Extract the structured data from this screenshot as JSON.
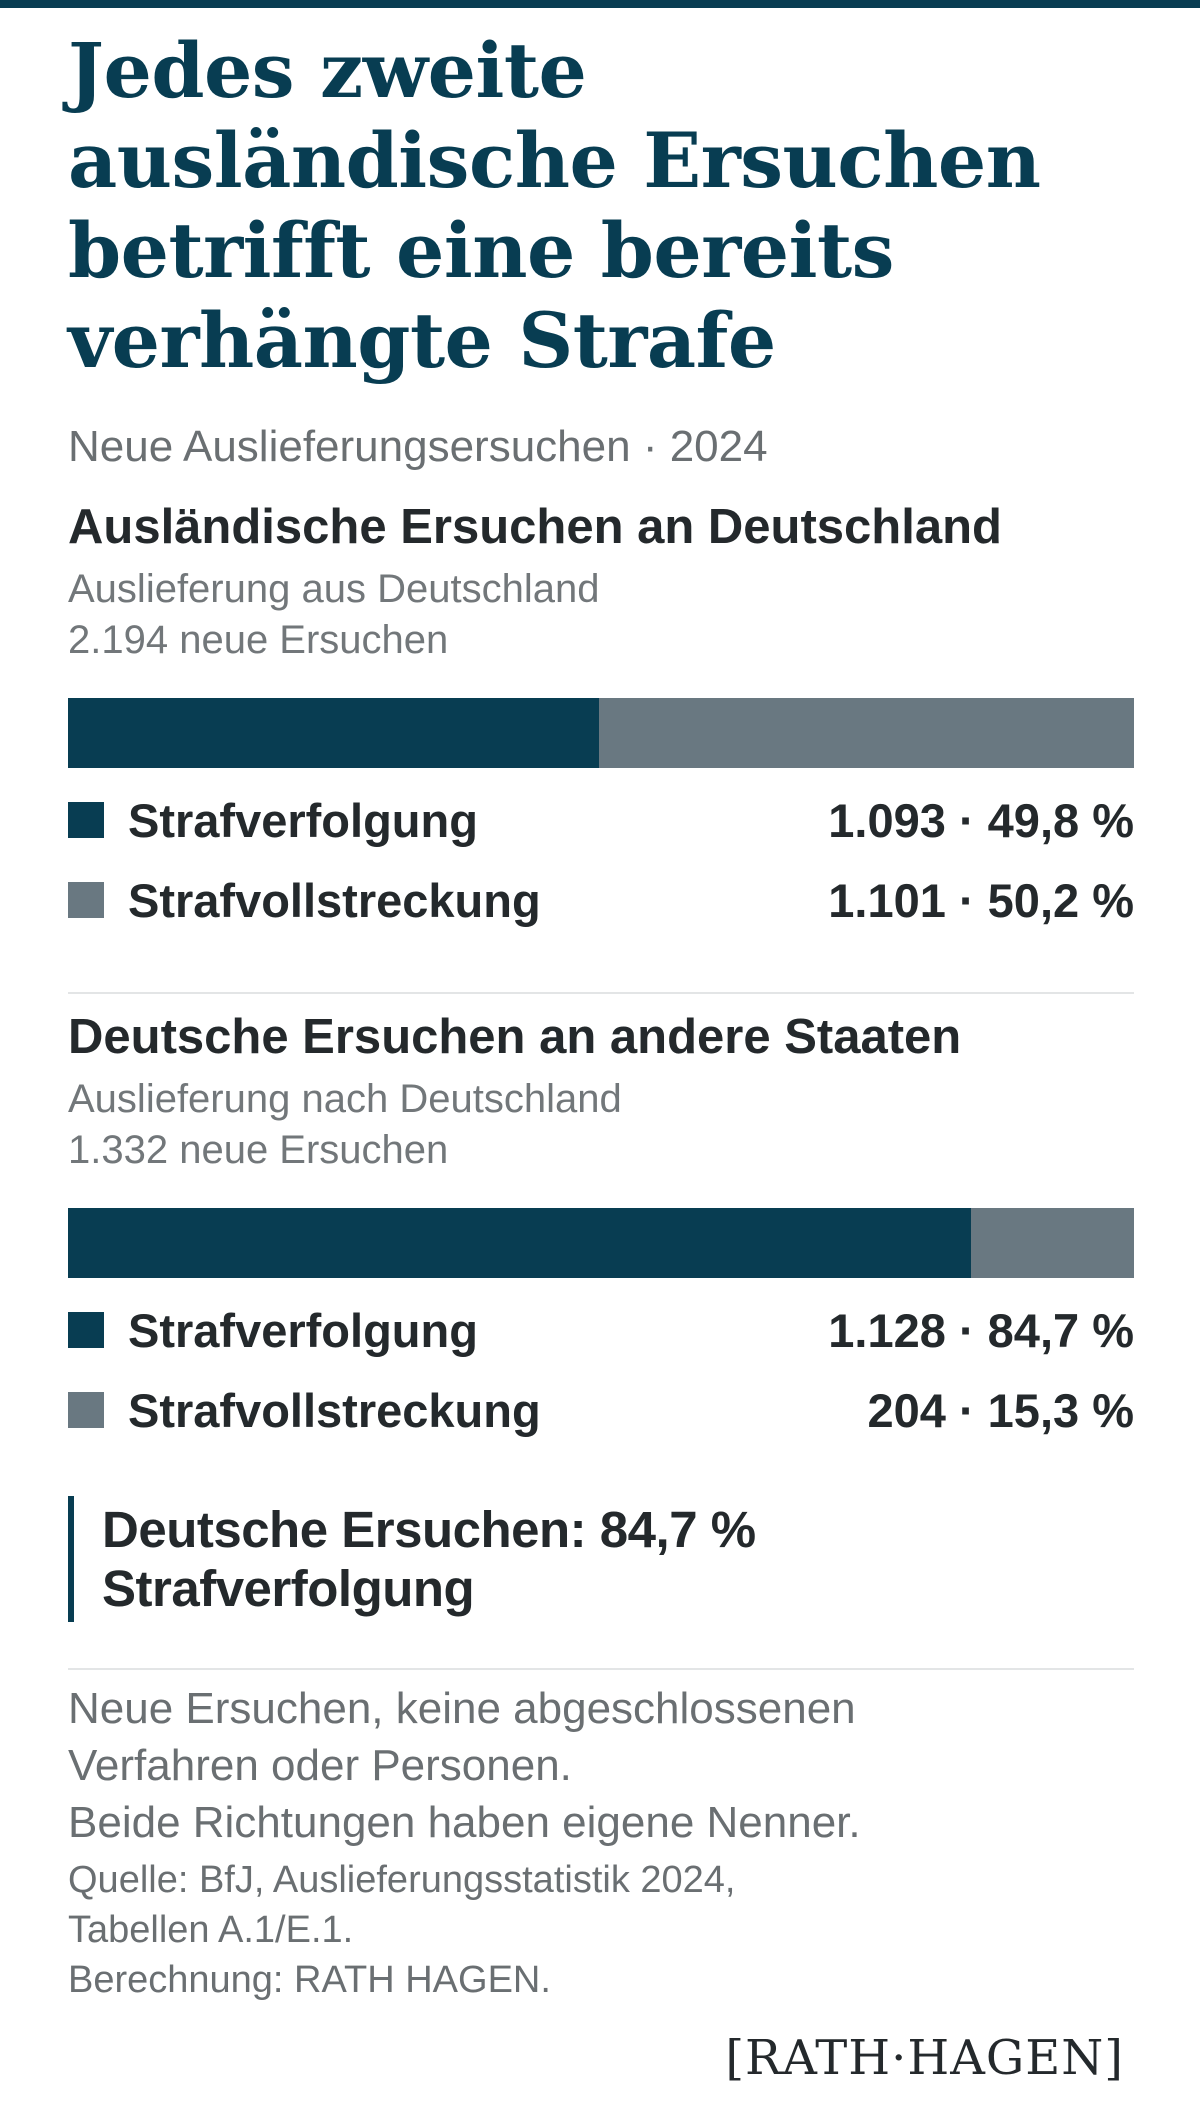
{
  "header": {
    "title": "Jedes zweite ausländische Ersuchen betrifft eine bereits verhängte Strafe",
    "subtitle": "Neue Auslieferungsersuchen · 2024"
  },
  "sections": [
    {
      "title": "Ausländische Ersuchen an Deutschland",
      "desc1": "Auslieferung aus Deutschland",
      "desc2": "2.194 neue Ersuchen",
      "rows": [
        {
          "label": "Strafverfolgung",
          "value_text": "1.093 · 49,8 %"
        },
        {
          "label": "Strafvollstreckung",
          "value_text": "1.101 · 50,2 %"
        }
      ]
    },
    {
      "title": "Deutsche Ersuchen an andere Staaten",
      "desc1": "Auslieferung nach Deutschland",
      "desc2": "1.332 neue Ersuchen",
      "rows": [
        {
          "label": "Strafverfolgung",
          "value_text": "1.128 · 84,7 %"
        },
        {
          "label": "Strafvollstreckung",
          "value_text": "204 · 15,3 %"
        }
      ]
    }
  ],
  "callout": "Deutsche Ersuchen: 84,7 % Strafverfolgung",
  "notes": {
    "line1": "Neue Ersuchen, keine abgeschlossenen",
    "line2": "Verfahren oder Personen.",
    "line3": "Beide Richtungen haben eigene Nenner.",
    "source1": "Quelle: BfJ, Auslieferungsstatistik 2024,",
    "source2": "Tabellen A.1/E.1.",
    "source3": "Berechnung: RATH HAGEN."
  },
  "logo": "[RATH·HAGEN]",
  "colors": {
    "primary": "#083d52",
    "secondary": "#697881",
    "text": "#24292c",
    "muted": "#6a6f72"
  },
  "chart_data": [
    {
      "type": "bar",
      "orientation": "stacked-horizontal-100",
      "title": "Ausländische Ersuchen an Deutschland",
      "total": 2194,
      "categories": [
        "Strafverfolgung",
        "Strafvollstreckung"
      ],
      "values": [
        1093,
        1101
      ],
      "percent": [
        49.8,
        50.2
      ]
    },
    {
      "type": "bar",
      "orientation": "stacked-horizontal-100",
      "title": "Deutsche Ersuchen an andere Staaten",
      "total": 1332,
      "categories": [
        "Strafverfolgung",
        "Strafvollstreckung"
      ],
      "values": [
        1128,
        204
      ],
      "percent": [
        84.7,
        15.3
      ]
    }
  ]
}
